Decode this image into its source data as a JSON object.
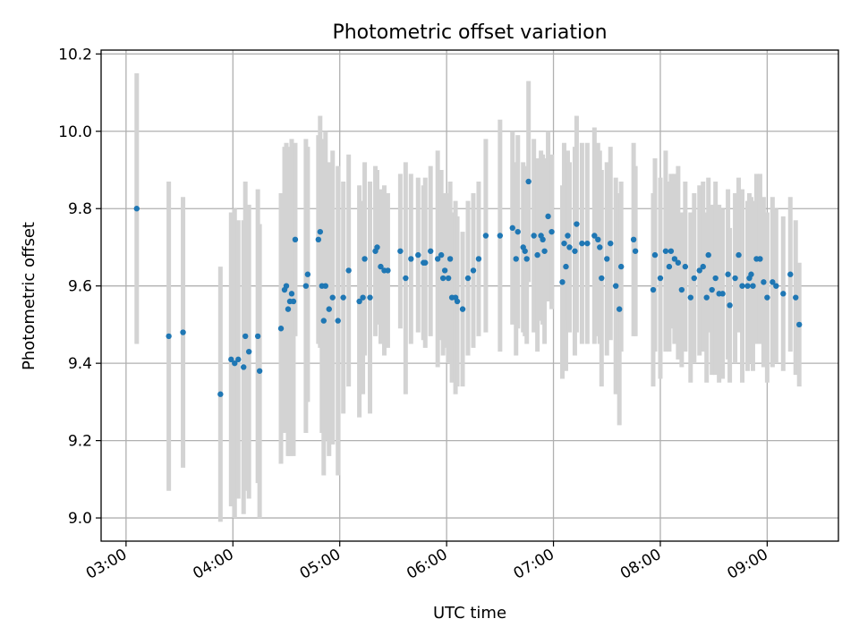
{
  "chart_data": {
    "type": "scatter",
    "title": "Photometric offset variation",
    "xlabel": "UTC time",
    "ylabel": "Photometric offset",
    "x_axis_type": "time",
    "xlim": [
      "02:46",
      "09:40"
    ],
    "ylim": [
      8.94,
      10.21
    ],
    "grid": true,
    "x_ticks": [
      "03:00",
      "04:00",
      "05:00",
      "06:00",
      "07:00",
      "08:00",
      "09:00"
    ],
    "y_ticks": [
      "9.0",
      "9.2",
      "9.4",
      "9.6",
      "9.8",
      "10.0",
      "10.2"
    ],
    "colors": {
      "points": "#1f77b4",
      "error_bars": "#d3d3d3"
    },
    "series": [
      {
        "x": [
          "03:06",
          "03:24",
          "03:32",
          "03:53",
          "03:59",
          "04:01",
          "04:03",
          "04:06",
          "04:07",
          "04:09",
          "04:14",
          "04:15",
          "04:27",
          "04:29",
          "04:30",
          "04:31",
          "04:32",
          "04:33",
          "04:34",
          "04:35",
          "04:41",
          "04:42",
          "04:48",
          "04:49",
          "04:50",
          "04:51",
          "04:52",
          "04:54",
          "04:56",
          "04:59",
          "05:02",
          "05:05",
          "05:11",
          "05:13",
          "05:14",
          "05:17",
          "05:20",
          "05:21",
          "05:23",
          "05:25",
          "05:27",
          "05:34",
          "05:37",
          "05:40",
          "05:44",
          "05:47",
          "05:48",
          "05:51",
          "05:55",
          "05:57",
          "05:58",
          "05:59",
          "06:01",
          "06:02",
          "06:03",
          "06:05",
          "06:06",
          "06:09",
          "06:12",
          "06:15",
          "06:18",
          "06:22",
          "06:30",
          "06:37",
          "06:39",
          "06:40",
          "06:43",
          "06:44",
          "06:45",
          "06:46",
          "06:49",
          "06:51",
          "06:53",
          "06:54",
          "06:55",
          "06:57",
          "06:59",
          "07:05",
          "07:06",
          "07:07",
          "07:08",
          "07:09",
          "07:12",
          "07:13",
          "07:16",
          "07:19",
          "07:23",
          "07:25",
          "07:26",
          "07:27",
          "07:30",
          "07:32",
          "07:35",
          "07:37",
          "07:38",
          "07:45",
          "07:46",
          "07:56",
          "07:57",
          "08:00",
          "08:03",
          "08:05",
          "08:06",
          "08:08",
          "08:10",
          "08:12",
          "08:14",
          "08:17",
          "08:19",
          "08:22",
          "08:24",
          "08:26",
          "08:27",
          "08:29",
          "08:31",
          "08:33",
          "08:35",
          "08:38",
          "08:39",
          "08:42",
          "08:44",
          "08:46",
          "08:49",
          "08:50",
          "08:51",
          "08:52",
          "08:54",
          "08:56",
          "08:58",
          "09:00",
          "09:03",
          "09:05",
          "09:09",
          "09:13",
          "09:16",
          "09:18"
        ],
        "y": [
          9.8,
          9.47,
          9.48,
          9.32,
          9.41,
          9.4,
          9.41,
          9.39,
          9.47,
          9.43,
          9.47,
          9.38,
          9.49,
          9.59,
          9.6,
          9.54,
          9.56,
          9.58,
          9.56,
          9.72,
          9.6,
          9.63,
          9.72,
          9.74,
          9.6,
          9.51,
          9.6,
          9.54,
          9.57,
          9.51,
          9.57,
          9.64,
          9.56,
          9.57,
          9.67,
          9.57,
          9.69,
          9.7,
          9.65,
          9.64,
          9.64,
          9.69,
          9.62,
          9.67,
          9.68,
          9.66,
          9.66,
          9.69,
          9.67,
          9.68,
          9.62,
          9.64,
          9.62,
          9.67,
          9.57,
          9.57,
          9.56,
          9.54,
          9.62,
          9.64,
          9.67,
          9.73,
          9.73,
          9.75,
          9.67,
          9.74,
          9.7,
          9.69,
          9.67,
          9.87,
          9.73,
          9.68,
          9.73,
          9.72,
          9.69,
          9.78,
          9.74,
          9.61,
          9.71,
          9.65,
          9.73,
          9.7,
          9.69,
          9.76,
          9.71,
          9.71,
          9.73,
          9.72,
          9.7,
          9.62,
          9.67,
          9.71,
          9.6,
          9.54,
          9.65,
          9.72,
          9.69,
          9.59,
          9.68,
          9.62,
          9.69,
          9.65,
          9.69,
          9.67,
          9.66,
          9.59,
          9.65,
          9.57,
          9.62,
          9.64,
          9.65,
          9.57,
          9.68,
          9.59,
          9.62,
          9.58,
          9.58,
          9.63,
          9.55,
          9.62,
          9.68,
          9.6,
          9.6,
          9.62,
          9.63,
          9.6,
          9.67,
          9.67,
          9.61,
          9.57,
          9.61,
          9.6,
          9.58,
          9.63,
          9.57,
          9.5
        ],
        "yerr": [
          0.35,
          0.4,
          0.35,
          0.33,
          0.38,
          0.4,
          0.36,
          0.38,
          0.4,
          0.38,
          0.38,
          0.38,
          0.35,
          0.37,
          0.37,
          0.38,
          0.4,
          0.4,
          0.4,
          0.25,
          0.38,
          0.33,
          0.27,
          0.3,
          0.38,
          0.4,
          0.4,
          0.38,
          0.38,
          0.4,
          0.3,
          0.3,
          0.3,
          0.25,
          0.25,
          0.3,
          0.22,
          0.2,
          0.2,
          0.22,
          0.2,
          0.2,
          0.3,
          0.22,
          0.2,
          0.2,
          0.22,
          0.22,
          0.28,
          0.22,
          0.2,
          0.2,
          0.22,
          0.2,
          0.22,
          0.25,
          0.22,
          0.2,
          0.2,
          0.2,
          0.2,
          0.25,
          0.3,
          0.25,
          0.25,
          0.25,
          0.22,
          0.22,
          0.22,
          0.26,
          0.25,
          0.25,
          0.22,
          0.22,
          0.24,
          0.22,
          0.2,
          0.25,
          0.26,
          0.27,
          0.22,
          0.22,
          0.27,
          0.28,
          0.26,
          0.26,
          0.28,
          0.25,
          0.25,
          0.28,
          0.25,
          0.25,
          0.28,
          0.3,
          0.22,
          0.25,
          0.22,
          0.25,
          0.25,
          0.26,
          0.26,
          0.22,
          0.2,
          0.22,
          0.25,
          0.2,
          0.22,
          0.22,
          0.22,
          0.22,
          0.22,
          0.22,
          0.2,
          0.22,
          0.25,
          0.23,
          0.22,
          0.22,
          0.2,
          0.22,
          0.2,
          0.25,
          0.22,
          0.22,
          0.2,
          0.22,
          0.22,
          0.22,
          0.22,
          0.22,
          0.22,
          0.2,
          0.2,
          0.2,
          0.2,
          0.16
        ]
      }
    ]
  }
}
